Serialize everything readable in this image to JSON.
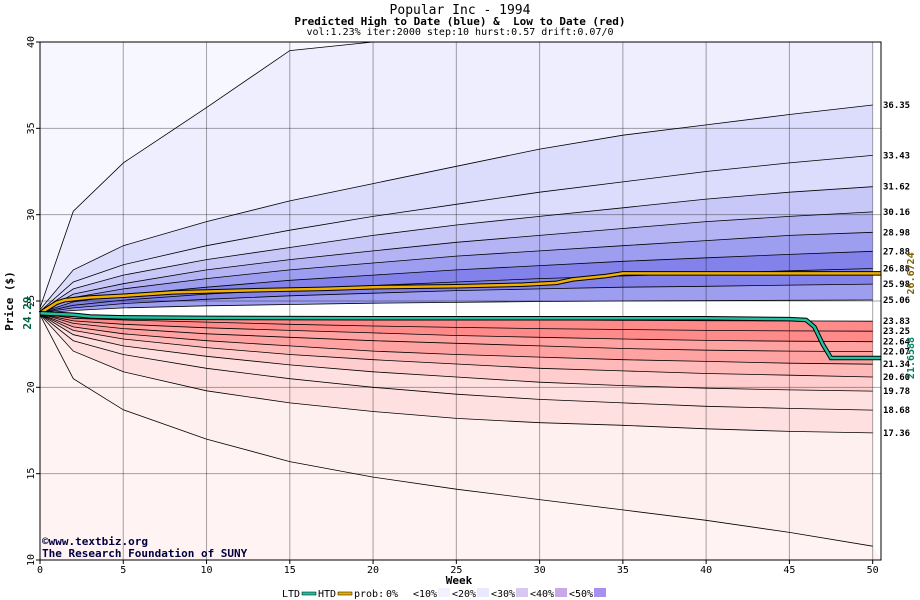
{
  "header": {
    "title": "Popular Inc - 1994",
    "subtitle": "Predicted High to Date (blue) &  Low to Date (red)",
    "params": "vol:1.23% iter:2000 step:10 hurst:0.57 drift:0.07/0"
  },
  "credits": {
    "line1": "©www.textbiz.org",
    "line2": "The Research Foundation of SUNY"
  },
  "chart_data": {
    "type": "area",
    "xlabel": "Week",
    "ylabel": "Price ($)",
    "xlim": [
      0,
      50.5
    ],
    "ylim": [
      10,
      40
    ],
    "xticks": [
      0,
      5,
      10,
      15,
      20,
      25,
      30,
      35,
      40,
      45,
      50
    ],
    "yticks": [
      10,
      15,
      20,
      25,
      30,
      35,
      40
    ],
    "start_price": "24.29",
    "grid": true,
    "colors": {
      "blue_bands": [
        "#eeeeff",
        "#dcdcfc",
        "#c8c8f8",
        "#b4b4f4",
        "#9e9ef0",
        "#8282ea"
      ],
      "red_bands": [
        "#fff0f0",
        "#ffe0e0",
        "#ffcdcd",
        "#ffb9b9",
        "#ffa2a2",
        "#ff8a8a"
      ],
      "htd_line": "#f0b000",
      "ltd_line": "#20c0a0",
      "htd_label": "#806000",
      "ltd_label": "#008060"
    },
    "upper_quantiles": [
      {
        "x": [
          0,
          2,
          5,
          10,
          15,
          20,
          25,
          30,
          35,
          40,
          45,
          50
        ],
        "y": [
          24.6,
          30.2,
          33,
          36.2,
          39.5,
          40,
          40,
          40,
          40,
          40,
          40,
          40
        ]
      },
      {
        "x": [
          0,
          2,
          5,
          10,
          15,
          20,
          25,
          30,
          35,
          40,
          45,
          50
        ],
        "y": [
          24.5,
          26.8,
          28.2,
          29.6,
          30.8,
          31.8,
          32.8,
          33.8,
          34.6,
          35.2,
          35.8,
          36.35
        ],
        "label": "36.35"
      },
      {
        "x": [
          0,
          2,
          5,
          10,
          15,
          20,
          25,
          30,
          35,
          40,
          45,
          50
        ],
        "y": [
          24.4,
          26.1,
          27.1,
          28.2,
          29.1,
          29.9,
          30.6,
          31.3,
          31.9,
          32.5,
          33,
          33.43
        ],
        "label": "33.43"
      },
      {
        "x": [
          0,
          2,
          5,
          10,
          15,
          20,
          25,
          30,
          35,
          40,
          45,
          50
        ],
        "y": [
          24.4,
          25.7,
          26.5,
          27.4,
          28.1,
          28.8,
          29.4,
          29.9,
          30.4,
          30.9,
          31.3,
          31.62
        ],
        "label": "31.62"
      },
      {
        "x": [
          0,
          2,
          5,
          10,
          15,
          20,
          25,
          30,
          35,
          40,
          45,
          50
        ],
        "y": [
          24.35,
          25.4,
          26,
          26.8,
          27.4,
          27.9,
          28.4,
          28.8,
          29.2,
          29.6,
          29.9,
          30.16
        ],
        "label": "30.16"
      },
      {
        "x": [
          0,
          2,
          5,
          10,
          15,
          20,
          25,
          30,
          35,
          40,
          45,
          50
        ],
        "y": [
          24.35,
          25.2,
          25.7,
          26.3,
          26.8,
          27.2,
          27.6,
          27.9,
          28.2,
          28.5,
          28.8,
          28.98
        ],
        "label": "28.98"
      },
      {
        "x": [
          0,
          2,
          5,
          10,
          15,
          20,
          25,
          30,
          35,
          40,
          45,
          50
        ],
        "y": [
          24.33,
          24.95,
          25.35,
          25.8,
          26.2,
          26.5,
          26.8,
          27.05,
          27.3,
          27.5,
          27.7,
          27.88
        ],
        "label": "27.88"
      },
      {
        "x": [
          0,
          2,
          5,
          10,
          15,
          20,
          25,
          30,
          35,
          40,
          45,
          50
        ],
        "y": [
          24.32,
          24.75,
          25.05,
          25.4,
          25.65,
          25.9,
          26.1,
          26.3,
          26.45,
          26.6,
          26.75,
          26.88
        ],
        "label": "26.88"
      },
      {
        "x": [
          0,
          2,
          5,
          10,
          15,
          20,
          25,
          30,
          35,
          40,
          45,
          50
        ],
        "y": [
          24.31,
          24.6,
          24.85,
          25.1,
          25.3,
          25.45,
          25.6,
          25.7,
          25.8,
          25.85,
          25.92,
          25.98
        ],
        "label": "25.98"
      },
      {
        "x": [
          0,
          2,
          5,
          10,
          15,
          20,
          25,
          30,
          35,
          40,
          45,
          50
        ],
        "y": [
          24.3,
          24.45,
          24.6,
          24.72,
          24.8,
          24.87,
          24.92,
          24.97,
          25,
          25.02,
          25.04,
          25.06
        ],
        "label": "25.06"
      }
    ],
    "lower_quantiles": [
      {
        "x": [
          0,
          2,
          5,
          10,
          15,
          20,
          25,
          30,
          35,
          40,
          45,
          50
        ],
        "y": [
          24.28,
          24.15,
          24.1,
          24.05,
          24,
          23.97,
          23.94,
          23.91,
          23.88,
          23.86,
          23.85,
          23.83
        ],
        "label": "23.83"
      },
      {
        "x": [
          0,
          2,
          5,
          10,
          15,
          20,
          25,
          30,
          35,
          40,
          45,
          50
        ],
        "y": [
          24.27,
          24,
          23.9,
          23.78,
          23.65,
          23.55,
          23.47,
          23.4,
          23.35,
          23.3,
          23.27,
          23.25
        ],
        "label": "23.25"
      },
      {
        "x": [
          0,
          2,
          5,
          10,
          15,
          20,
          25,
          30,
          35,
          40,
          45,
          50
        ],
        "y": [
          24.26,
          23.85,
          23.65,
          23.45,
          23.3,
          23.15,
          23,
          22.9,
          22.8,
          22.72,
          22.67,
          22.64
        ],
        "label": "22.64"
      },
      {
        "x": [
          0,
          2,
          5,
          10,
          15,
          20,
          25,
          30,
          35,
          40,
          45,
          50
        ],
        "y": [
          24.26,
          23.7,
          23.4,
          23.1,
          22.9,
          22.7,
          22.55,
          22.4,
          22.25,
          22.15,
          22.1,
          22.07
        ],
        "label": "22.07"
      },
      {
        "x": [
          0,
          2,
          5,
          10,
          15,
          20,
          25,
          30,
          35,
          40,
          45,
          50
        ],
        "y": [
          24.25,
          23.5,
          23.1,
          22.7,
          22.4,
          22.1,
          21.9,
          21.75,
          21.6,
          21.5,
          21.4,
          21.34
        ],
        "label": "21.34"
      },
      {
        "x": [
          0,
          2,
          5,
          10,
          15,
          20,
          25,
          30,
          35,
          40,
          45,
          50
        ],
        "y": [
          24.25,
          23.3,
          22.8,
          22.3,
          21.9,
          21.6,
          21.35,
          21.1,
          20.95,
          20.8,
          20.7,
          20.6
        ],
        "label": "20.60"
      },
      {
        "x": [
          0,
          2,
          5,
          10,
          15,
          20,
          25,
          30,
          35,
          40,
          45,
          50
        ],
        "y": [
          24.24,
          23.05,
          22.4,
          21.8,
          21.3,
          20.9,
          20.6,
          20.3,
          20.1,
          19.95,
          19.85,
          19.78
        ],
        "label": "19.78"
      },
      {
        "x": [
          0,
          2,
          5,
          10,
          15,
          20,
          25,
          30,
          35,
          40,
          45,
          50
        ],
        "y": [
          24.23,
          22.7,
          21.9,
          21.1,
          20.5,
          20,
          19.6,
          19.3,
          19.1,
          18.9,
          18.78,
          18.68
        ],
        "label": "18.68"
      },
      {
        "x": [
          0,
          2,
          5,
          10,
          15,
          20,
          25,
          30,
          35,
          40,
          45,
          50
        ],
        "y": [
          24.22,
          22.1,
          20.9,
          19.8,
          19.1,
          18.6,
          18.2,
          17.95,
          17.8,
          17.6,
          17.45,
          17.36
        ],
        "label": "17.36"
      },
      {
        "x": [
          0,
          2,
          5,
          10,
          15,
          20,
          25,
          30,
          35,
          40,
          45,
          50
        ],
        "y": [
          24.2,
          20.5,
          18.7,
          17,
          15.7,
          14.8,
          14.1,
          13.5,
          12.9,
          12.3,
          11.6,
          10.8
        ]
      }
    ],
    "series": [
      {
        "name": "HTD",
        "x": [
          0,
          0.5,
          1,
          1.5,
          2,
          3,
          5,
          8,
          12,
          17,
          20,
          25,
          29,
          31,
          32,
          34,
          35,
          40,
          45,
          50.5
        ],
        "y": [
          24.29,
          24.6,
          24.9,
          25.05,
          25.1,
          25.2,
          25.3,
          25.5,
          25.6,
          25.7,
          25.8,
          25.85,
          25.95,
          26.05,
          26.25,
          26.45,
          26.6,
          26.6,
          26.6,
          26.6
        ],
        "end_label": "26.6724"
      },
      {
        "name": "LTD",
        "x": [
          0,
          1,
          2,
          3,
          5,
          10,
          20,
          30,
          40,
          45,
          46,
          46.5,
          47,
          47.5,
          48,
          50.5
        ],
        "y": [
          24.29,
          24.25,
          24.2,
          24.1,
          24.05,
          24.02,
          24.0,
          24.0,
          24.0,
          23.95,
          23.9,
          23.5,
          22.5,
          21.7,
          21.7,
          21.7
        ],
        "end_label": "21.6588"
      }
    ],
    "legend": {
      "ltd": "LTD",
      "htd": "HTD",
      "prob_label": "prob:",
      "items": [
        "0%",
        "<10%",
        "<20%",
        "<30%",
        "<40%",
        "<50%"
      ],
      "placement": "bottom"
    }
  }
}
